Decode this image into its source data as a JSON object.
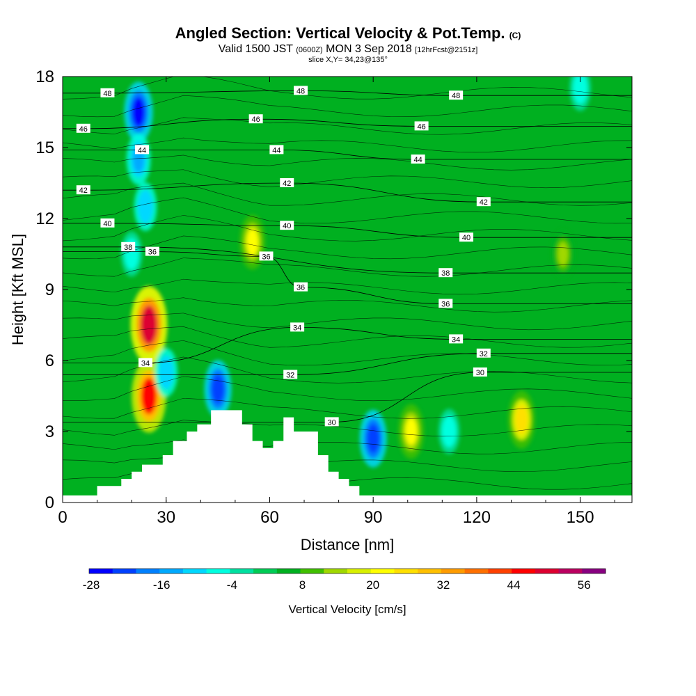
{
  "header": {
    "title_main": "Angled Section: Vertical Velocity & Pot.Temp.",
    "title_mark": "(C)",
    "valid_prefix": "Valid 1500 JST",
    "valid_z": "(0600Z)",
    "valid_date": "MON 3 Sep 2018",
    "forecast": "[12hrFcst@2151z]",
    "slice": "slice X,Y= 34,23@135°"
  },
  "chart_data": {
    "type": "heatmap",
    "xlabel": "Distance [nm]",
    "ylabel": "Height [Kft MSL]",
    "xlim": [
      0,
      165
    ],
    "ylim": [
      0,
      18
    ],
    "x_ticks": [
      0,
      30,
      60,
      90,
      120,
      150
    ],
    "y_ticks": [
      0,
      3,
      6,
      9,
      12,
      15,
      18
    ],
    "colorbar": {
      "label": "Vertical Velocity [cm/s]",
      "tick_labels": [
        -28,
        -16,
        -4,
        8,
        20,
        32,
        44,
        56
      ],
      "levels": [
        -28,
        -24,
        -20,
        -16,
        -12,
        -8,
        -4,
        0,
        4,
        8,
        12,
        16,
        20,
        24,
        28,
        32,
        36,
        40,
        44,
        48,
        52,
        56,
        60
      ],
      "colors": [
        "#0000ff",
        "#0040ff",
        "#0080ff",
        "#00aaff",
        "#00d8ff",
        "#00ffe0",
        "#00e0a0",
        "#00cc55",
        "#00b020",
        "#40c000",
        "#a0d800",
        "#d8f000",
        "#ffff00",
        "#ffe000",
        "#ffc000",
        "#ff9c00",
        "#ff7000",
        "#ff4000",
        "#ff0000",
        "#dd0030",
        "#bb0060",
        "#880080"
      ]
    },
    "terrain_profile": {
      "x": [
        0,
        10,
        10,
        17,
        17,
        20,
        20,
        23,
        23,
        29,
        29,
        32,
        32,
        36,
        36,
        39,
        39,
        43,
        43,
        52,
        52,
        55,
        55,
        58,
        58,
        61,
        61,
        64,
        64,
        67,
        67,
        74,
        74,
        77,
        77,
        80,
        80,
        83,
        83,
        86,
        86,
        89,
        89,
        165
      ],
      "y": [
        0.3,
        0.3,
        0.7,
        0.7,
        1.0,
        1.0,
        1.3,
        1.3,
        1.6,
        1.6,
        2.0,
        2.0,
        2.6,
        2.6,
        3.0,
        3.0,
        3.3,
        3.3,
        3.9,
        3.9,
        3.3,
        3.3,
        2.6,
        2.6,
        2.3,
        2.3,
        2.6,
        2.6,
        3.6,
        3.6,
        3.0,
        3.0,
        2.0,
        2.0,
        1.3,
        1.3,
        1.0,
        1.0,
        0.7,
        0.7,
        0.3,
        0.3,
        0.3,
        0.3
      ]
    },
    "isentrope_labels": [
      {
        "text": "48",
        "x": 13,
        "y": 17.3
      },
      {
        "text": "48",
        "x": 69,
        "y": 17.4
      },
      {
        "text": "48",
        "x": 114,
        "y": 17.2
      },
      {
        "text": "46",
        "x": 6,
        "y": 15.8
      },
      {
        "text": "46",
        "x": 56,
        "y": 16.2
      },
      {
        "text": "46",
        "x": 104,
        "y": 15.9
      },
      {
        "text": "44",
        "x": 23,
        "y": 14.9
      },
      {
        "text": "44",
        "x": 62,
        "y": 14.9
      },
      {
        "text": "44",
        "x": 103,
        "y": 14.5
      },
      {
        "text": "42",
        "x": 6,
        "y": 13.2
      },
      {
        "text": "42",
        "x": 65,
        "y": 13.5
      },
      {
        "text": "42",
        "x": 122,
        "y": 12.7
      },
      {
        "text": "40",
        "x": 13,
        "y": 11.8
      },
      {
        "text": "40",
        "x": 65,
        "y": 11.7
      },
      {
        "text": "40",
        "x": 117,
        "y": 11.2
      },
      {
        "text": "38",
        "x": 19,
        "y": 10.8
      },
      {
        "text": "38",
        "x": 111,
        "y": 9.7
      },
      {
        "text": "36",
        "x": 26,
        "y": 10.6
      },
      {
        "text": "36",
        "x": 59,
        "y": 10.4
      },
      {
        "text": "36",
        "x": 69,
        "y": 9.1
      },
      {
        "text": "36",
        "x": 111,
        "y": 8.4
      },
      {
        "text": "34",
        "x": 68,
        "y": 7.4
      },
      {
        "text": "34",
        "x": 114,
        "y": 6.9
      },
      {
        "text": "34",
        "x": 24,
        "y": 5.9
      },
      {
        "text": "32",
        "x": 66,
        "y": 5.4
      },
      {
        "text": "32",
        "x": 122,
        "y": 6.3
      },
      {
        "text": "30",
        "x": 121,
        "y": 5.5
      },
      {
        "text": "30",
        "x": 78,
        "y": 3.4
      }
    ],
    "velocity_cells": [
      {
        "x": 22,
        "y": 16.5,
        "v": -28
      },
      {
        "x": 22,
        "y": 14.5,
        "v": -16
      },
      {
        "x": 24,
        "y": 12.5,
        "v": -12
      },
      {
        "x": 20,
        "y": 10.5,
        "v": -8
      },
      {
        "x": 25,
        "y": 7.5,
        "v": 50
      },
      {
        "x": 25,
        "y": 4.5,
        "v": 44
      },
      {
        "x": 30,
        "y": 5.5,
        "v": -12
      },
      {
        "x": 45,
        "y": 4.8,
        "v": -24
      },
      {
        "x": 55,
        "y": 11.0,
        "v": 20
      },
      {
        "x": 90,
        "y": 2.7,
        "v": -24
      },
      {
        "x": 101,
        "y": 3.0,
        "v": 20
      },
      {
        "x": 112,
        "y": 3.0,
        "v": -8
      },
      {
        "x": 133,
        "y": 3.5,
        "v": 24
      },
      {
        "x": 145,
        "y": 10.5,
        "v": 12
      },
      {
        "x": 150,
        "y": 17.5,
        "v": -8
      }
    ]
  }
}
